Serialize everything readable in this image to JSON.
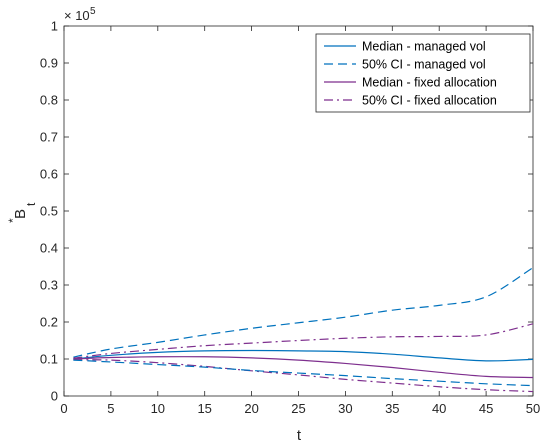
{
  "chart_data": {
    "type": "line",
    "xlabel": "t",
    "ylabel_base": "B",
    "ylabel_sup": "*",
    "ylabel_sub": "t",
    "exponent_label": "× 10",
    "exponent_power": "5",
    "xlim": [
      0,
      50
    ],
    "ylim": [
      0,
      1
    ],
    "x_ticks": [
      0,
      5,
      10,
      15,
      20,
      25,
      30,
      35,
      40,
      45,
      50
    ],
    "y_ticks": [
      0,
      0.1,
      0.2,
      0.3,
      0.4,
      0.5,
      0.6,
      0.7,
      0.8,
      0.9,
      1
    ],
    "y_tick_labels": [
      "0",
      "0.1",
      "0.2",
      "0.3",
      "0.4",
      "0.5",
      "0.6",
      "0.7",
      "0.8",
      "0.9",
      "1"
    ],
    "grid": false,
    "legend_position": "top-right",
    "x": [
      1,
      5,
      10,
      15,
      20,
      25,
      30,
      35,
      40,
      45,
      50
    ],
    "series": [
      {
        "name": "Median - managed vol",
        "color": "#0072BD",
        "dash": "solid",
        "values": [
          0.1,
          0.11,
          0.118,
          0.122,
          0.123,
          0.122,
          0.12,
          0.113,
          0.103,
          0.095,
          0.099
        ]
      },
      {
        "name": "50% CI - managed vol",
        "color": "#0072BD",
        "dash": "dashed",
        "values": [
          0.105,
          0.127,
          0.145,
          0.165,
          0.183,
          0.198,
          0.213,
          0.232,
          0.245,
          0.268,
          0.347
        ]
      },
      {
        "name": "Median - fixed allocation",
        "color": "#7E2F8E",
        "dash": "solid",
        "values": [
          0.1,
          0.104,
          0.106,
          0.106,
          0.103,
          0.097,
          0.088,
          0.077,
          0.064,
          0.053,
          0.05
        ]
      },
      {
        "name": "50% CI - fixed allocation",
        "color": "#7E2F8E",
        "dash": "dashdot",
        "values": [
          0.098,
          0.097,
          0.09,
          0.08,
          0.068,
          0.057,
          0.045,
          0.035,
          0.025,
          0.017,
          0.012
        ]
      },
      {
        "name": "",
        "color": "#0072BD",
        "dash": "dashed",
        "values": [
          0.097,
          0.092,
          0.085,
          0.078,
          0.069,
          0.062,
          0.055,
          0.047,
          0.04,
          0.033,
          0.028
        ]
      },
      {
        "name": "",
        "color": "#7E2F8E",
        "dash": "dashdot",
        "values": [
          0.102,
          0.115,
          0.126,
          0.136,
          0.143,
          0.15,
          0.156,
          0.16,
          0.161,
          0.165,
          0.195
        ]
      }
    ]
  }
}
